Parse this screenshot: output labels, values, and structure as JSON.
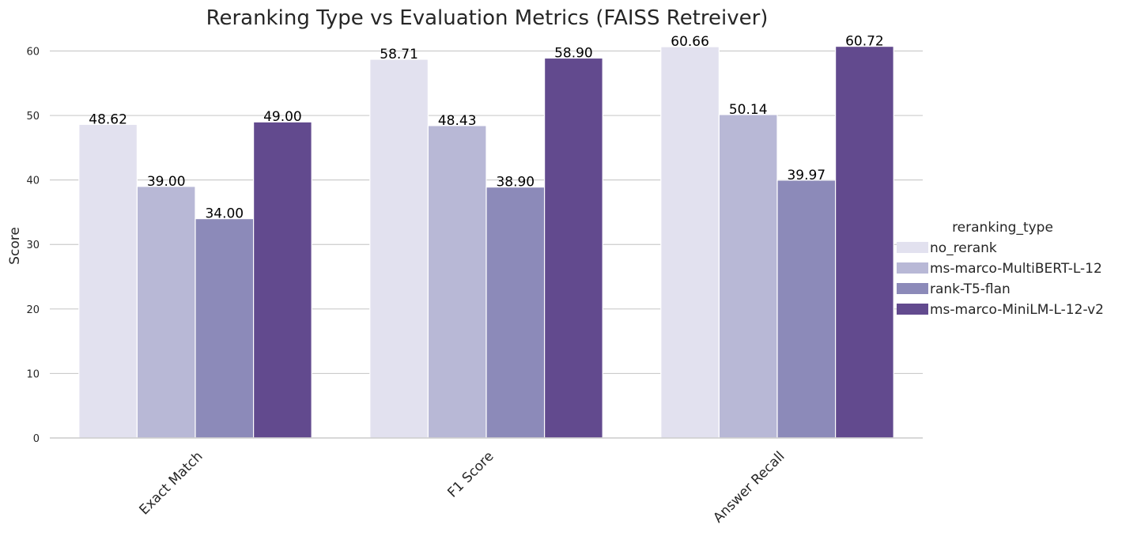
{
  "chart_data": {
    "type": "bar",
    "title": "Reranking Type vs Evaluation Metrics (FAISS Retreiver)",
    "xlabel": "",
    "ylabel": "Score",
    "ylim": [
      0,
      63
    ],
    "yticks": [
      0,
      10,
      20,
      30,
      40,
      50,
      60
    ],
    "grid": "horizontal",
    "categories": [
      "Exact Match",
      "F1 Score",
      "Answer Recall"
    ],
    "legend": {
      "title": "reranking_type",
      "placement": "right"
    },
    "series": [
      {
        "name": "no_rerank",
        "color": "#e2e1ef",
        "values": [
          48.62,
          58.71,
          60.66
        ],
        "labels": [
          "48.62",
          "58.71",
          "60.66"
        ]
      },
      {
        "name": "ms-marco-MultiBERT-L-12",
        "color": "#b8b8d6",
        "values": [
          39.0,
          48.43,
          50.14
        ],
        "labels": [
          "39.00",
          "48.43",
          "50.14"
        ]
      },
      {
        "name": "rank-T5-flan",
        "color": "#8c8ab9",
        "values": [
          34.0,
          38.9,
          39.97
        ],
        "labels": [
          "34.00",
          "38.90",
          "39.97"
        ]
      },
      {
        "name": "ms-marco-MiniLM-L-12-v2",
        "color": "#624a8e",
        "values": [
          49.0,
          58.9,
          60.72
        ],
        "labels": [
          "49.00",
          "58.90",
          "60.72"
        ]
      }
    ]
  }
}
